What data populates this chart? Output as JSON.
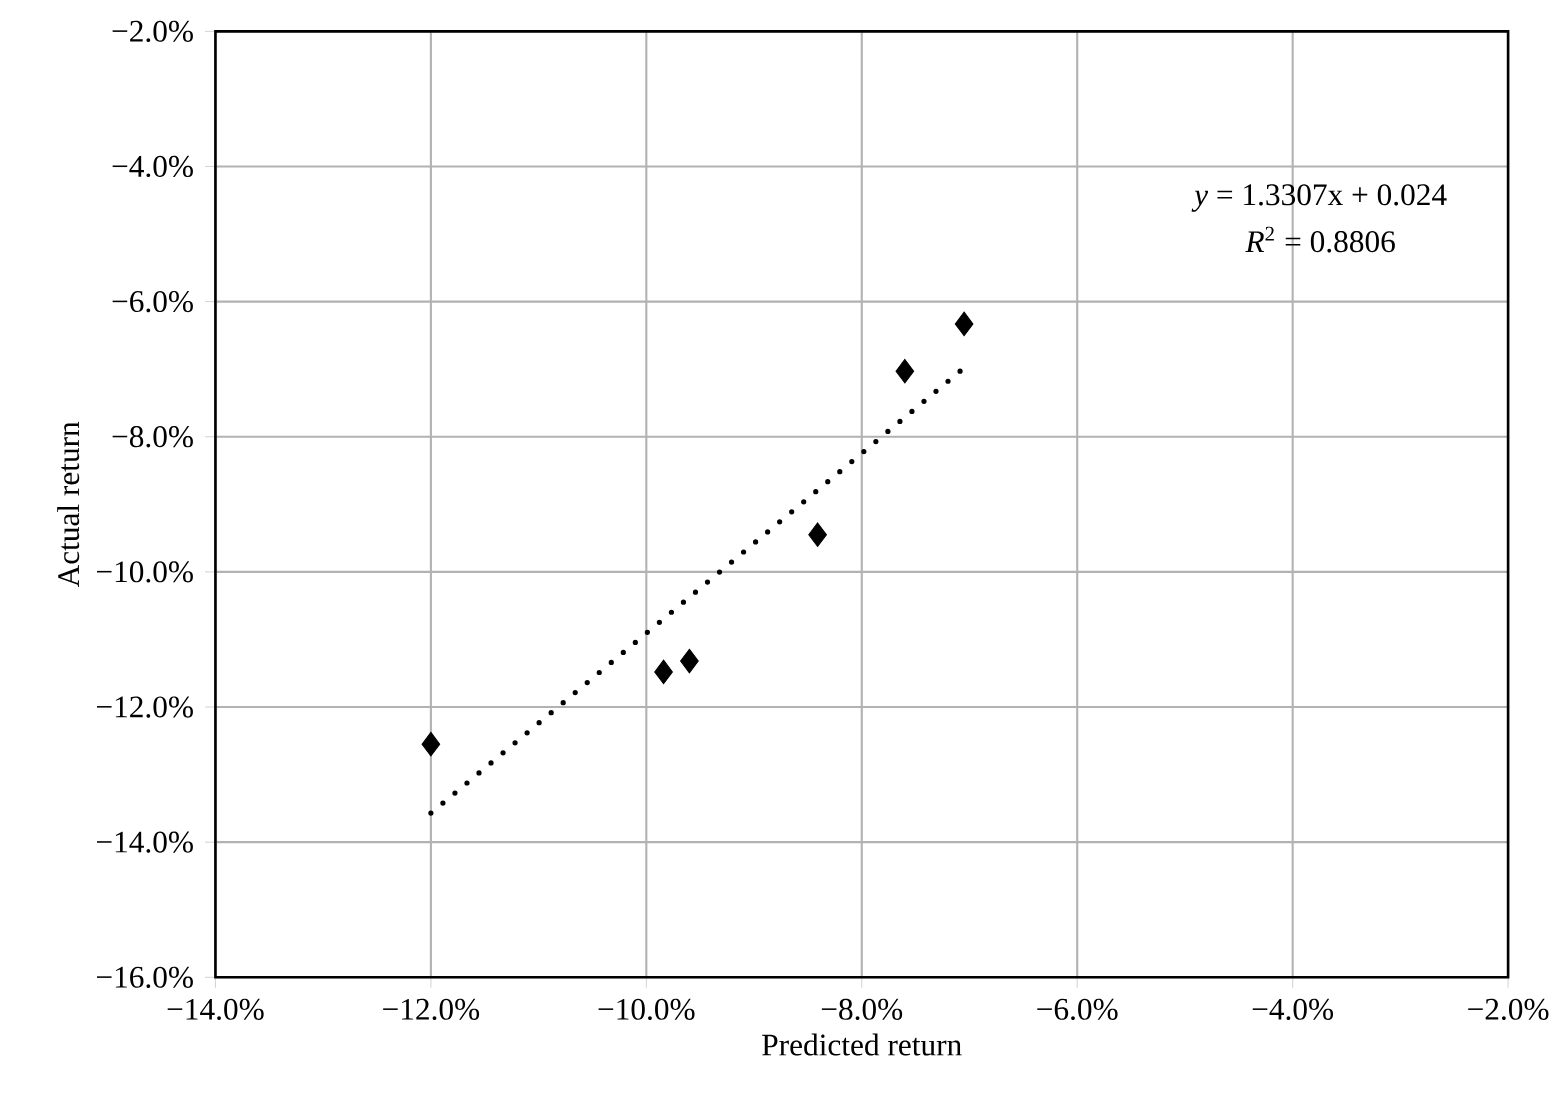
{
  "chart_data": {
    "type": "scatter",
    "xlabel": "Predicted return",
    "ylabel": "Actual return",
    "annotations": [
      "*y* = 1.3307x + 0.024",
      "*R*$^{2}$ = 0.8806"
    ],
    "series": [
      {
        "color": "#000000",
        "marker": "diamond",
        "x": [
          -12.0,
          -9.84,
          -9.6,
          -8.41,
          -7.6,
          -7.05
        ],
        "values": [
          -12.55,
          -11.48,
          -11.32,
          -9.45,
          -7.03,
          -6.33
        ]
      },
      {
        "type": "line",
        "color": "#000000",
        "line_style": "dotted",
        "marker": "none",
        "x": [
          -12.0,
          -7.05
        ],
        "values": [
          -13.57,
          -6.98
        ]
      }
    ],
    "xlim": [
      -14,
      -2
    ],
    "ylim": [
      -16,
      -2
    ],
    "xticks": [
      {
        "value": -14,
        "label": "−14.0%"
      },
      {
        "value": -12,
        "label": "−12.0%"
      },
      {
        "value": -10,
        "label": "−10.0%"
      },
      {
        "value": -8,
        "label": "−8.0%"
      },
      {
        "value": -6,
        "label": "−6.0%"
      },
      {
        "value": -4,
        "label": "−4.0%"
      },
      {
        "value": -2,
        "label": "−2.0%"
      }
    ],
    "yticks": [
      {
        "value": -16,
        "label": "−16.0%"
      },
      {
        "value": -14,
        "label": "−14.0%"
      },
      {
        "value": -12,
        "label": "−12.0%"
      },
      {
        "value": -10,
        "label": "−10.0%"
      },
      {
        "value": -8,
        "label": "−8.0%"
      },
      {
        "value": -6,
        "label": "−6.0%"
      },
      {
        "value": -4,
        "label": "−4.0%"
      },
      {
        "value": -2,
        "label": "−2.0%"
      }
    ],
    "grid": true
  }
}
